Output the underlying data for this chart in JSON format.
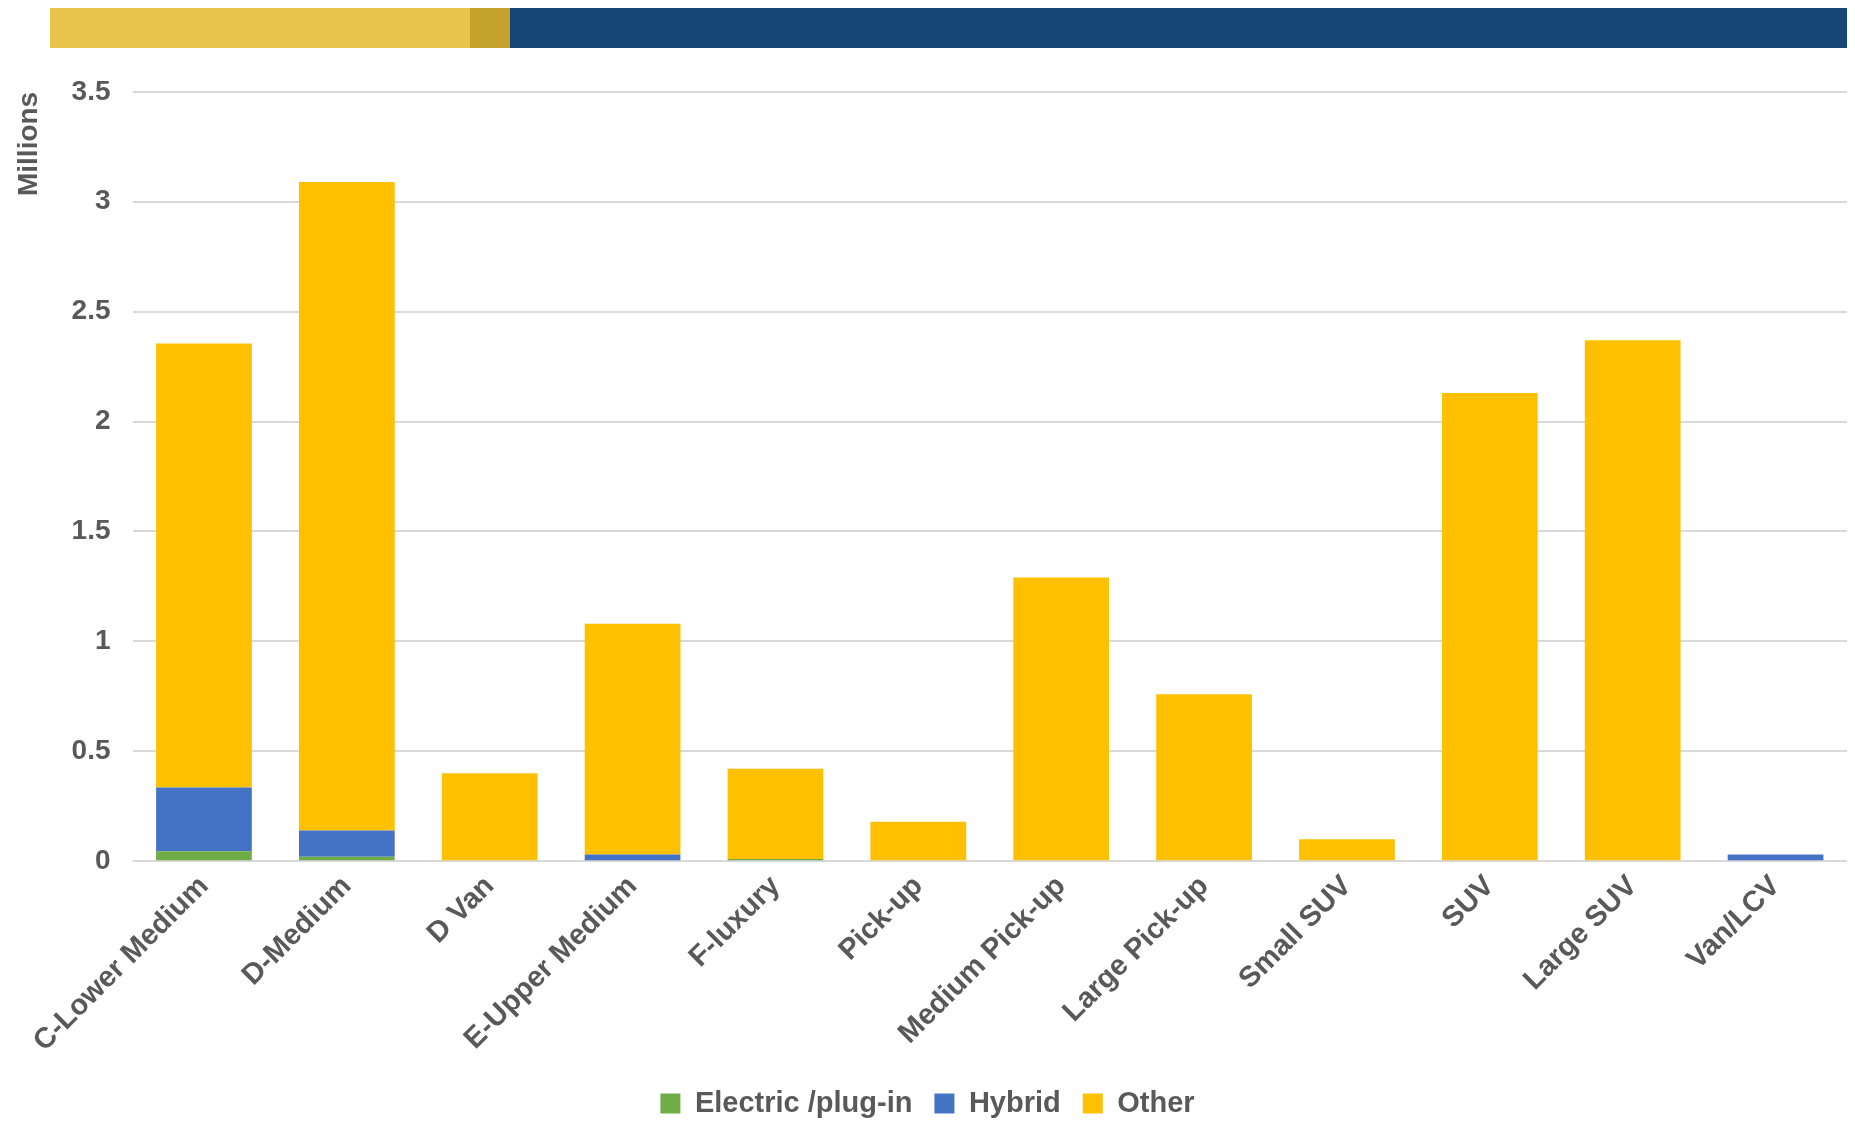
{
  "chart_data": {
    "type": "bar",
    "stacked": true,
    "ylabel": "Millions",
    "categories": [
      "C-Lower Medium",
      "D-Medium",
      "D Van",
      "E-Upper Medium",
      "F-luxury",
      "Pick-up",
      "Medium Pick-up",
      "Large Pick-up",
      "Small SUV",
      "SUV",
      "Large SUV",
      "Van/LCV"
    ],
    "series": [
      {
        "name": "Electric /plug-in",
        "color": "#70ad47",
        "values": [
          0.045,
          0.02,
          0,
          0,
          0.01,
          0,
          0,
          0,
          0,
          0,
          0,
          0
        ]
      },
      {
        "name": "Hybrid",
        "color": "#4472c4",
        "values": [
          0.29,
          0.12,
          0,
          0.03,
          0,
          0,
          0,
          0,
          0,
          0,
          0,
          0.03
        ]
      },
      {
        "name": "Other",
        "color": "#ffc000",
        "values": [
          2.02,
          2.95,
          0.4,
          1.05,
          0.41,
          0.18,
          1.29,
          0.76,
          0.1,
          2.13,
          2.37,
          0
        ]
      }
    ],
    "ylim": [
      0,
      3.5
    ],
    "yticks": [
      0,
      0.5,
      1,
      1.5,
      2,
      2.5,
      3,
      3.5
    ],
    "grid": "y",
    "legend": "bottom"
  }
}
